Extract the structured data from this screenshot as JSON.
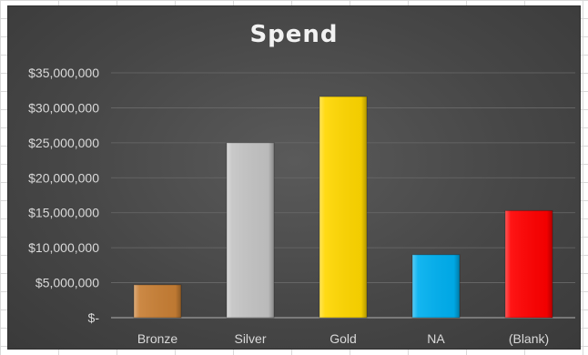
{
  "chart_data": {
    "type": "bar",
    "title": "Spend",
    "categories": [
      "Bronze",
      "Silver",
      "Gold",
      "NA",
      "(Blank)"
    ],
    "values": [
      4700000,
      25000000,
      31600000,
      9000000,
      15300000
    ],
    "colors": [
      "#c87f35",
      "#c4c4c4",
      "#ffd700",
      "#00b0f0",
      "#ff0000"
    ],
    "ylim": [
      0,
      35000000
    ],
    "yticks": [
      0,
      5000000,
      10000000,
      15000000,
      20000000,
      25000000,
      30000000,
      35000000
    ],
    "ytick_labels": [
      "$-",
      "$5,000,000",
      "$10,000,000",
      "$15,000,000",
      "$20,000,000",
      "$25,000,000",
      "$30,000,000",
      "$35,000,000"
    ],
    "xlabel": "",
    "ylabel": "",
    "grid": true,
    "legend": "none"
  }
}
